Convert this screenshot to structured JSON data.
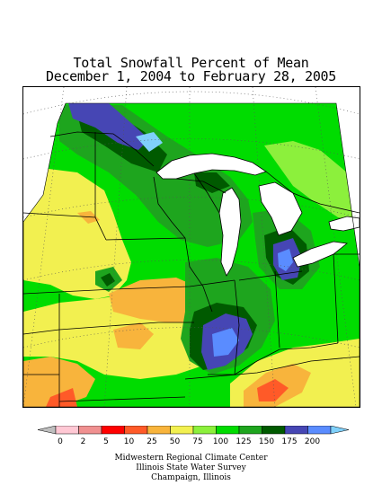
{
  "title": {
    "line1": "Total Snowfall Percent of Mean",
    "line2": "December 1, 2004 to February 28, 2005"
  },
  "legend": {
    "below_color": "#bebebe",
    "above_color": "#7fd0fa",
    "bins": [
      {
        "label": "0",
        "color": "#ffc8d4"
      },
      {
        "label": "2",
        "color": "#f09090"
      },
      {
        "label": "5",
        "color": "#ff0000"
      },
      {
        "label": "10",
        "color": "#ff5a28"
      },
      {
        "label": "25",
        "color": "#f8b43c"
      },
      {
        "label": "50",
        "color": "#f2f050"
      },
      {
        "label": "75",
        "color": "#8cf03c"
      },
      {
        "label": "100",
        "color": "#00dc00"
      },
      {
        "label": "125",
        "color": "#1ea51e"
      },
      {
        "label": "150",
        "color": "#005a00"
      },
      {
        "label": "175",
        "color": "#4646b4"
      },
      {
        "label": "200",
        "color": "#5a8cff"
      }
    ]
  },
  "credits": {
    "line1": "Midwestern Regional Climate Center",
    "line2": "Illinois State Water Survey",
    "line3": "Champaign, Illinois"
  }
}
